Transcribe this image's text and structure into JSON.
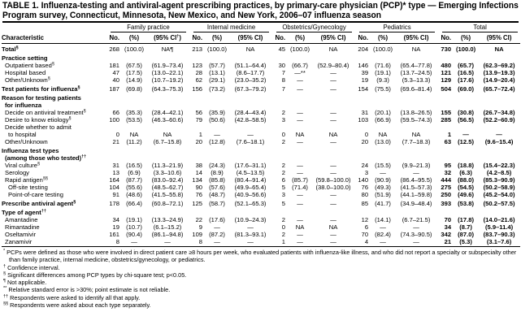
{
  "title": {
    "line1": "TABLE 1. Influenza-testing and antiviral-agent prescribing practices, by primary-care physician (PCP)* type — Emerging Infections",
    "line2": "Program survey, Connecticut, Minnesota, New Mexico, and New York, 2006–07 influenza season"
  },
  "groups": [
    "Family practice",
    "Internal medicine",
    "Obstetrics/Gynecology",
    "Pediatrics",
    "Total"
  ],
  "columns": {
    "characteristic": "Characteristic",
    "sub": [
      {
        "no": "No.",
        "pct": "(%)",
        "ci": "(95% CI",
        "ci_sup": "†",
        "ci_close": ")"
      },
      {
        "no": "No.",
        "pct": "(%)",
        "ci": "(95% CI)",
        "ci_sup": "",
        "ci_close": ""
      },
      {
        "no": "No.",
        "pct": "(%)",
        "ci": "(95% CI)",
        "ci_sup": "",
        "ci_close": ""
      },
      {
        "no": "No.",
        "pct": "(%)",
        "ci": "(95% CI)",
        "ci_sup": "",
        "ci_close": ""
      },
      {
        "no": "No.",
        "pct": "(%)",
        "ci": "(95% CI)",
        "ci_sup": "",
        "ci_close": ""
      }
    ]
  },
  "rows": [
    {
      "label": "Total",
      "sup": "§",
      "bold": true,
      "indent": 0,
      "sec": true,
      "v": [
        [
          "268",
          "(100.0)",
          "NA¶"
        ],
        [
          "213",
          "(100.0)",
          "NA"
        ],
        [
          "45",
          "(100.0)",
          "NA"
        ],
        [
          "204",
          "(100.0)",
          "NA"
        ],
        [
          "730",
          "(100.0)",
          "NA"
        ]
      ]
    },
    {
      "label": "Practice setting",
      "sup": "",
      "bold": true,
      "indent": 0,
      "sec": true,
      "v": []
    },
    {
      "label": "Outpatient based",
      "sup": "§",
      "indent": 1,
      "v": [
        [
          "181",
          "(67.5)",
          "(61.9–73.4)"
        ],
        [
          "123",
          "(57.7)",
          "(51.1–64.4)"
        ],
        [
          "30",
          "(66.7)",
          "(52.9–80.4)"
        ],
        [
          "146",
          "(71.6)",
          "(65.4–77.8)"
        ],
        [
          "480",
          "(65.7)",
          "(62.3–69.2)"
        ]
      ]
    },
    {
      "label": "Hospital based",
      "sup": "",
      "indent": 1,
      "v": [
        [
          "47",
          "(17.5)",
          "(13.0–22.1)"
        ],
        [
          "28",
          "(13.1)",
          "(8.6–17.7)"
        ],
        [
          "7",
          "—**",
          "—"
        ],
        [
          "39",
          "(19.1)",
          "(13.7–24.5)"
        ],
        [
          "121",
          "(16.5)",
          "(13.9–19.3)"
        ]
      ]
    },
    {
      "label": "Other/Unknown",
      "sup": "§",
      "indent": 1,
      "v": [
        [
          "40",
          "(14.9)",
          "(10.7–19.2)"
        ],
        [
          "62",
          "(29.1)",
          "(23.0–35.2)"
        ],
        [
          "8",
          "—",
          "—"
        ],
        [
          "19",
          "(9.3)",
          "(5.3–13.3)"
        ],
        [
          "129",
          "(17.6)",
          "(14.9–20.4)"
        ]
      ]
    },
    {
      "label": "Test patients for influenza",
      "sup": "§",
      "bold": true,
      "indent": 0,
      "sec": true,
      "v": [
        [
          "187",
          "(69.8)",
          "(64.3–75.3)"
        ],
        [
          "156",
          "(73.2)",
          "(67.3–79.2)"
        ],
        [
          "7",
          "—",
          "—"
        ],
        [
          "154",
          "(75.5)",
          "(69.6–81.4)"
        ],
        [
          "504",
          "(69.0)",
          "(65.7–72.4)"
        ]
      ]
    },
    {
      "label": "Reason for testing patients",
      "sup": "",
      "bold": true,
      "indent": 0,
      "sec": true,
      "v": []
    },
    {
      "label": "for influenza",
      "sup": "",
      "bold": true,
      "indent": 1,
      "v": []
    },
    {
      "label": "Decide on antiviral treatment",
      "sup": "§",
      "indent": 1,
      "v": [
        [
          "66",
          "(35.3)",
          "(28.4–42.1)"
        ],
        [
          "56",
          "(35.9)",
          "(28.4–43.4)"
        ],
        [
          "2",
          "—",
          "—"
        ],
        [
          "31",
          "(20.1)",
          "(13.8–26.5)"
        ],
        [
          "155",
          "(30.8)",
          "(26.7–34.8)"
        ]
      ]
    },
    {
      "label": "Desire to know etiology",
      "sup": "§",
      "indent": 1,
      "v": [
        [
          "100",
          "(53.5)",
          "(46.3–60.6)"
        ],
        [
          "79",
          "(50.6)",
          "(42.8–58.5)"
        ],
        [
          "3",
          "—",
          "—"
        ],
        [
          "103",
          "(66.9)",
          "(59.5–74.3)"
        ],
        [
          "285",
          "(56.5)",
          "(52.2–60.9)"
        ]
      ]
    },
    {
      "label": "Decide whether to admit",
      "sup": "",
      "indent": 1,
      "v": []
    },
    {
      "label": "to hospital",
      "sup": "",
      "indent": 2,
      "v": [
        [
          "0",
          "NA",
          "NA"
        ],
        [
          "1",
          "—",
          "—"
        ],
        [
          "0",
          "NA",
          "NA"
        ],
        [
          "0",
          "NA",
          "NA"
        ],
        [
          "1",
          "—",
          "—"
        ]
      ]
    },
    {
      "label": "Other/Unknown",
      "sup": "",
      "indent": 1,
      "v": [
        [
          "21",
          "(11.2)",
          "(6.7–15.8)"
        ],
        [
          "20",
          "(12.8)",
          "(7.6–18.1)"
        ],
        [
          "2",
          "—",
          "—"
        ],
        [
          "20",
          "(13.0)",
          "(7.7–18.3)"
        ],
        [
          "63",
          "(12.5)",
          "(9.6–15.4)"
        ]
      ]
    },
    {
      "label": "Influenza test types",
      "sup": "",
      "bold": true,
      "indent": 0,
      "sec": true,
      "v": []
    },
    {
      "label": "(among those who tested)",
      "sup": "††",
      "bold": true,
      "indent": 1,
      "v": []
    },
    {
      "label": "Viral culture",
      "sup": "§",
      "indent": 1,
      "v": [
        [
          "31",
          "(16.5)",
          "(11.3–21.9)"
        ],
        [
          "38",
          "(24.3)",
          "(17.6–31.1)"
        ],
        [
          "2",
          "—",
          "—"
        ],
        [
          "24",
          "(15.5)",
          "(9.9–21.3)"
        ],
        [
          "95",
          "(18.8)",
          "(15.4–22.3)"
        ]
      ]
    },
    {
      "label": "Serology",
      "sup": "",
      "indent": 1,
      "v": [
        [
          "13",
          "(6.9)",
          "(3.3–10.6)"
        ],
        [
          "14",
          "(8.9)",
          "(4.5–13.5)"
        ],
        [
          "2",
          "—",
          "—"
        ],
        [
          "3",
          "—",
          "—"
        ],
        [
          "32",
          "(6.3)",
          "(4.2–8.5)"
        ]
      ]
    },
    {
      "label": "Rapid antigen",
      "sup": "§§",
      "indent": 1,
      "v": [
        [
          "164",
          "(87.7)",
          "(83.0–92.4)"
        ],
        [
          "134",
          "(85.8)",
          "(80.4–91.4)"
        ],
        [
          "6",
          "(85.7)",
          "(59.8–100.0)"
        ],
        [
          "140",
          "(90.9)",
          "(86.4–95.5)"
        ],
        [
          "444",
          "(88.0)",
          "(85.3–90.9)"
        ]
      ]
    },
    {
      "label": "Off-site testing",
      "sup": "",
      "indent": 2,
      "v": [
        [
          "104",
          "(55.6)",
          "(48.5–62.7)"
        ],
        [
          "90",
          "(57.6)",
          "(49.9–65.4)"
        ],
        [
          "5",
          "(71.4)",
          "(38.0–100.0)"
        ],
        [
          "76",
          "(49.3)",
          "(41.5–57.3)"
        ],
        [
          "275",
          "(54.5)",
          "(50.2–58.9)"
        ]
      ]
    },
    {
      "label": "Point-of-care testing",
      "sup": "",
      "indent": 2,
      "v": [
        [
          "91",
          "(48.6)",
          "(41.5–55.8)"
        ],
        [
          "76",
          "(48.7)",
          "(40.9–56.6)"
        ],
        [
          "3",
          "—",
          "—"
        ],
        [
          "80",
          "(51.9)",
          "(44.1–59.8)"
        ],
        [
          "250",
          "(49.6)",
          "(45.2–54.0)"
        ]
      ]
    },
    {
      "label": "Prescribe antiviral agent",
      "sup": "§",
      "bold": true,
      "indent": 0,
      "sec": true,
      "v": [
        [
          "178",
          "(66.4)",
          "(60.8–72.1)"
        ],
        [
          "125",
          "(58.7)",
          "(52.1–65.3)"
        ],
        [
          "5",
          "—",
          "—"
        ],
        [
          "85",
          "(41.7)",
          "(34.9–48.4)"
        ],
        [
          "393",
          "(53.8)",
          "(50.2–57.5)"
        ]
      ]
    },
    {
      "label": "Type of agent",
      "sup": "††",
      "bold": true,
      "indent": 0,
      "sec": true,
      "v": []
    },
    {
      "label": "Amantadine",
      "sup": "",
      "indent": 1,
      "v": [
        [
          "34",
          "(19.1)",
          "(13.3–24.9)"
        ],
        [
          "22",
          "(17.6)",
          "(10.9–24.3)"
        ],
        [
          "2",
          "—",
          "—"
        ],
        [
          "12",
          "(14.1)",
          "(6.7–21.5)"
        ],
        [
          "70",
          "(17.8)",
          "(14.0–21.6)"
        ]
      ]
    },
    {
      "label": "Rimantadine",
      "sup": "",
      "indent": 1,
      "v": [
        [
          "19",
          "(10.7)",
          "(6.1–15.2)"
        ],
        [
          "9",
          "—",
          "—"
        ],
        [
          "0",
          "NA",
          "NA"
        ],
        [
          "6",
          "—",
          "—"
        ],
        [
          "34",
          "(8.7)",
          "(5.9–11.4)"
        ]
      ]
    },
    {
      "label": "Oseltamivir",
      "sup": "",
      "indent": 1,
      "v": [
        [
          "161",
          "(90.4)",
          "(86.1–94.8)"
        ],
        [
          "109",
          "(87.2)",
          "(81.3–93.1)"
        ],
        [
          "2",
          "—",
          "—"
        ],
        [
          "70",
          "(82.4)",
          "(74.3–90.5)"
        ],
        [
          "342",
          "(87.0)",
          "(83.7–90.3)"
        ]
      ]
    },
    {
      "label": "Zanamivir",
      "sup": "",
      "indent": 1,
      "last": true,
      "v": [
        [
          "8",
          "—",
          "—"
        ],
        [
          "8",
          "—",
          "—"
        ],
        [
          "1",
          "—",
          "—"
        ],
        [
          "4",
          "—",
          "—"
        ],
        [
          "21",
          "(5.3)",
          "(3.1–7.6)"
        ]
      ]
    }
  ],
  "footnotes": [
    {
      "mark": "*",
      "text": "PCPs were defined as those who were involved in direct patient care ≥8 hours per week, who evaluated patients with influenza-like illness, and who did not report a specialty or subspecialty other than family practice, internal medicine, obstetrics/gynecology, or pediatrics."
    },
    {
      "mark": "†",
      "text": "Confidence interval."
    },
    {
      "mark": "§",
      "text": "Significant differences among PCP types by chi-square test; p<0.05."
    },
    {
      "mark": "¶",
      "text": "Not applicable."
    },
    {
      "mark": "**",
      "text": "Relative standard error is >30%; point estimate is not reliable."
    },
    {
      "mark": "††",
      "text": "Respondents were asked to identify all that apply."
    },
    {
      "mark": "§§",
      "text": "Respondents were asked about each type separately."
    }
  ]
}
